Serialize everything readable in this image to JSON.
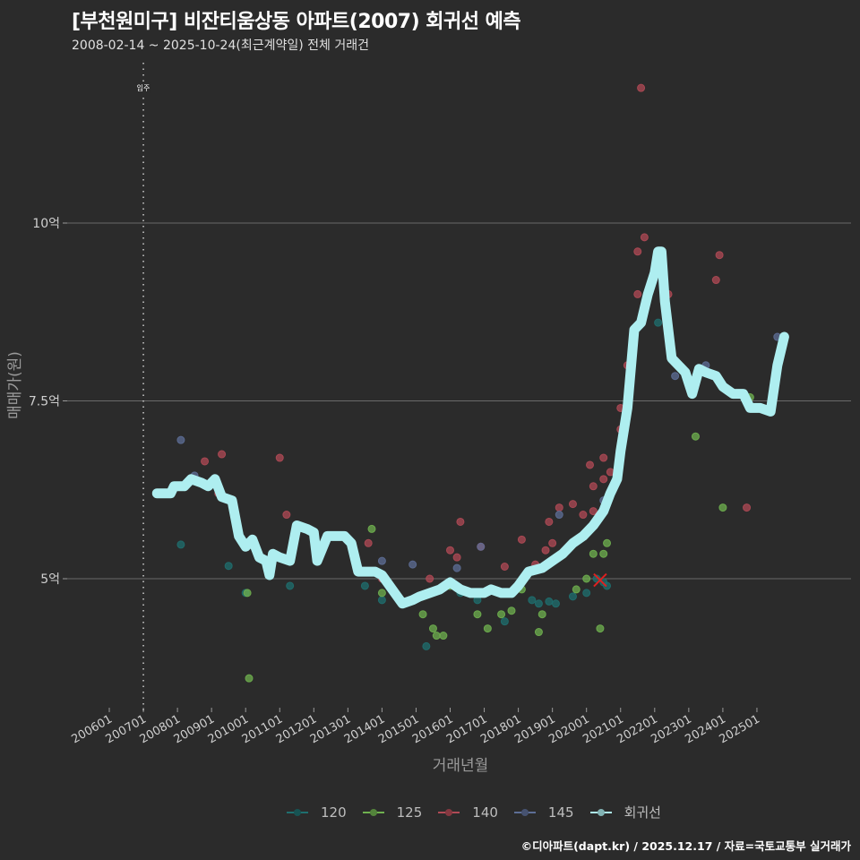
{
  "header": {
    "title": "[부천원미구] 비잔티움상동 아파트(2007) 회귀선 예측",
    "subtitle": "2008-02-14 ~ 2025-10-24(최근계약일) 전체 거래건"
  },
  "footer": {
    "credit": "©디아파트(dapt.kr) / 2025.12.17 / 자료=국토교통부 실거래가"
  },
  "colors": {
    "background": "#2b2b2b",
    "grid": "#6a6a6a",
    "regression": "#aeeef0",
    "s120": "#1f6f6f",
    "s125": "#6fb04f",
    "s140": "#b04a55",
    "s145": "#5d6e96",
    "marker_x": "#e02020"
  },
  "chart_data": {
    "type": "scatter",
    "title": "[부천원미구] 비잔티움상동 아파트(2007) 회귀선 예측",
    "subtitle": "2008-02-14 ~ 2025-10-24(최근계약일) 전체 거래건",
    "xlabel": "거래년월",
    "ylabel": "매매가(원)",
    "x_ticks": [
      "200601",
      "200701",
      "200801",
      "200901",
      "201001",
      "201101",
      "201201",
      "201301",
      "201401",
      "201501",
      "201601",
      "201701",
      "201801",
      "201901",
      "202001",
      "202101",
      "202201",
      "202301",
      "202401",
      "202501"
    ],
    "y_ticks": [
      "5억",
      "7.5억",
      "10억"
    ],
    "y_tick_values": [
      5,
      7.5,
      10
    ],
    "ylim": [
      3.2,
      12.2
    ],
    "xlim": [
      2004.7,
      2026.9
    ],
    "grid": true,
    "annotation": {
      "label": "입주",
      "x": 2007.0,
      "style": "dotted vertical line"
    },
    "legend": [
      "120",
      "125",
      "140",
      "145",
      "회귀선"
    ],
    "legend_position": "bottom",
    "series": [
      {
        "name": "120",
        "points": [
          [
            2008.1,
            5.48
          ],
          [
            2009.5,
            5.18
          ],
          [
            2010.0,
            4.8
          ],
          [
            2011.3,
            4.9
          ],
          [
            2013.5,
            4.9
          ],
          [
            2014.0,
            4.7
          ],
          [
            2015.3,
            4.05
          ],
          [
            2016.3,
            4.8
          ],
          [
            2016.8,
            4.7
          ],
          [
            2017.0,
            4.8
          ],
          [
            2017.6,
            4.4
          ],
          [
            2018.4,
            4.7
          ],
          [
            2018.6,
            4.65
          ],
          [
            2018.9,
            4.68
          ],
          [
            2019.1,
            4.65
          ],
          [
            2019.6,
            4.75
          ],
          [
            2020.0,
            4.8
          ],
          [
            2020.3,
            5.0
          ],
          [
            2020.5,
            4.95
          ],
          [
            2020.6,
            4.9
          ],
          [
            2022.1,
            8.6
          ],
          [
            2024.7,
            7.48
          ]
        ]
      },
      {
        "name": "125",
        "points": [
          [
            2010.05,
            4.8
          ],
          [
            2010.1,
            3.6
          ],
          [
            2013.7,
            5.7
          ],
          [
            2014.0,
            4.8
          ],
          [
            2015.2,
            4.5
          ],
          [
            2015.5,
            4.3
          ],
          [
            2015.6,
            4.2
          ],
          [
            2015.8,
            4.2
          ],
          [
            2016.0,
            4.9
          ],
          [
            2016.8,
            4.5
          ],
          [
            2017.1,
            4.3
          ],
          [
            2017.5,
            4.5
          ],
          [
            2017.8,
            4.55
          ],
          [
            2018.1,
            4.85
          ],
          [
            2018.6,
            4.25
          ],
          [
            2018.7,
            4.5
          ],
          [
            2019.7,
            4.85
          ],
          [
            2020.0,
            5.0
          ],
          [
            2020.2,
            5.35
          ],
          [
            2020.4,
            4.3
          ],
          [
            2020.5,
            5.35
          ],
          [
            2020.6,
            5.5
          ],
          [
            2023.2,
            7.0
          ],
          [
            2024.0,
            6.0
          ],
          [
            2024.8,
            7.55
          ]
        ]
      },
      {
        "name": "140",
        "points": [
          [
            2008.8,
            6.65
          ],
          [
            2009.2,
            6.2
          ],
          [
            2009.3,
            6.75
          ],
          [
            2011.0,
            6.7
          ],
          [
            2011.2,
            5.9
          ],
          [
            2013.6,
            5.5
          ],
          [
            2014.0,
            5.0
          ],
          [
            2015.4,
            5.0
          ],
          [
            2016.0,
            5.4
          ],
          [
            2016.2,
            5.3
          ],
          [
            2016.3,
            5.8
          ],
          [
            2016.9,
            5.45
          ],
          [
            2017.6,
            5.17
          ],
          [
            2018.1,
            5.55
          ],
          [
            2018.5,
            5.2
          ],
          [
            2018.8,
            5.4
          ],
          [
            2018.9,
            5.8
          ],
          [
            2019.0,
            5.5
          ],
          [
            2019.2,
            6.0
          ],
          [
            2019.6,
            6.05
          ],
          [
            2019.9,
            5.9
          ],
          [
            2020.1,
            6.6
          ],
          [
            2020.2,
            6.3
          ],
          [
            2020.2,
            5.95
          ],
          [
            2020.5,
            6.4
          ],
          [
            2020.5,
            6.7
          ],
          [
            2020.7,
            6.5
          ],
          [
            2021.0,
            7.1
          ],
          [
            2021.0,
            7.4
          ],
          [
            2021.2,
            8.0
          ],
          [
            2021.5,
            9.0
          ],
          [
            2021.5,
            9.6
          ],
          [
            2021.7,
            9.8
          ],
          [
            2021.6,
            11.9
          ],
          [
            2022.4,
            9.0
          ],
          [
            2023.8,
            9.2
          ],
          [
            2023.9,
            9.55
          ],
          [
            2024.7,
            6.0
          ]
        ]
      },
      {
        "name": "145",
        "points": [
          [
            2008.1,
            6.95
          ],
          [
            2008.5,
            6.45
          ],
          [
            2014.0,
            5.25
          ],
          [
            2014.9,
            5.2
          ],
          [
            2016.2,
            5.15
          ],
          [
            2016.9,
            5.45
          ],
          [
            2019.2,
            5.9
          ],
          [
            2020.5,
            6.1
          ],
          [
            2022.6,
            7.85
          ],
          [
            2023.5,
            8.0
          ],
          [
            2025.6,
            8.4
          ]
        ]
      },
      {
        "name": "회귀선",
        "type": "line",
        "points": [
          [
            2007.4,
            6.2
          ],
          [
            2007.8,
            6.2
          ],
          [
            2007.9,
            6.3
          ],
          [
            2008.2,
            6.3
          ],
          [
            2008.4,
            6.4
          ],
          [
            2008.7,
            6.35
          ],
          [
            2008.9,
            6.3
          ],
          [
            2009.1,
            6.4
          ],
          [
            2009.3,
            6.15
          ],
          [
            2009.6,
            6.1
          ],
          [
            2009.8,
            5.6
          ],
          [
            2010.0,
            5.45
          ],
          [
            2010.2,
            5.55
          ],
          [
            2010.4,
            5.3
          ],
          [
            2010.6,
            5.25
          ],
          [
            2010.7,
            5.05
          ],
          [
            2010.8,
            5.35
          ],
          [
            2011.0,
            5.3
          ],
          [
            2011.3,
            5.25
          ],
          [
            2011.5,
            5.75
          ],
          [
            2011.8,
            5.7
          ],
          [
            2012.0,
            5.65
          ],
          [
            2012.1,
            5.25
          ],
          [
            2012.4,
            5.6
          ],
          [
            2012.9,
            5.6
          ],
          [
            2013.1,
            5.5
          ],
          [
            2013.3,
            5.1
          ],
          [
            2013.8,
            5.1
          ],
          [
            2014.0,
            5.05
          ],
          [
            2014.3,
            4.85
          ],
          [
            2014.6,
            4.65
          ],
          [
            2014.9,
            4.7
          ],
          [
            2015.1,
            4.75
          ],
          [
            2015.4,
            4.8
          ],
          [
            2015.7,
            4.85
          ],
          [
            2016.0,
            4.95
          ],
          [
            2016.3,
            4.85
          ],
          [
            2016.6,
            4.8
          ],
          [
            2017.0,
            4.8
          ],
          [
            2017.2,
            4.85
          ],
          [
            2017.5,
            4.8
          ],
          [
            2017.8,
            4.8
          ],
          [
            2018.0,
            4.9
          ],
          [
            2018.3,
            5.1
          ],
          [
            2018.7,
            5.15
          ],
          [
            2019.0,
            5.25
          ],
          [
            2019.3,
            5.35
          ],
          [
            2019.6,
            5.5
          ],
          [
            2019.9,
            5.6
          ],
          [
            2020.2,
            5.75
          ],
          [
            2020.5,
            5.95
          ],
          [
            2020.7,
            6.2
          ],
          [
            2020.9,
            6.4
          ],
          [
            2021.0,
            6.8
          ],
          [
            2021.2,
            7.4
          ],
          [
            2021.4,
            8.5
          ],
          [
            2021.6,
            8.6
          ],
          [
            2021.8,
            9.0
          ],
          [
            2022.0,
            9.3
          ],
          [
            2022.1,
            9.6
          ],
          [
            2022.2,
            9.6
          ],
          [
            2022.3,
            8.9
          ],
          [
            2022.5,
            8.1
          ],
          [
            2022.7,
            8.0
          ],
          [
            2022.9,
            7.9
          ],
          [
            2023.1,
            7.6
          ],
          [
            2023.3,
            7.95
          ],
          [
            2023.5,
            7.9
          ],
          [
            2023.8,
            7.85
          ],
          [
            2024.0,
            7.7
          ],
          [
            2024.3,
            7.6
          ],
          [
            2024.6,
            7.6
          ],
          [
            2024.8,
            7.4
          ],
          [
            2025.1,
            7.4
          ],
          [
            2025.4,
            7.35
          ],
          [
            2025.6,
            8.0
          ],
          [
            2025.8,
            8.4
          ]
        ]
      }
    ],
    "marker_x": {
      "x": 2020.4,
      "y": 4.98
    }
  },
  "axis": {
    "x_title": "거래년월",
    "y_title": "매매가(원)",
    "annotation_label": "입주"
  },
  "legend": {
    "items": [
      {
        "label": "120",
        "color": "#1f6f6f"
      },
      {
        "label": "125",
        "color": "#6fb04f"
      },
      {
        "label": "140",
        "color": "#b04a55"
      },
      {
        "label": "145",
        "color": "#5d6e96"
      },
      {
        "label": "회귀선",
        "color": "#aeeef0"
      }
    ]
  }
}
